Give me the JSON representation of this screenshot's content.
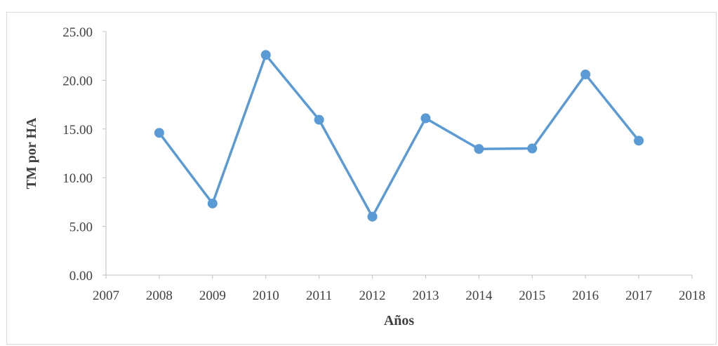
{
  "chart_data": {
    "type": "line",
    "title": "",
    "xlabel": "Años",
    "ylabel": "TM por HA",
    "x": [
      2008,
      2009,
      2010,
      2011,
      2012,
      2013,
      2014,
      2015,
      2016,
      2017
    ],
    "series": [
      {
        "values": [
          14.6,
          7.35,
          22.6,
          15.95,
          6.0,
          16.1,
          12.95,
          13.0,
          20.6,
          13.8
        ]
      }
    ],
    "xlim": [
      2007,
      2018
    ],
    "ylim": [
      0,
      25
    ],
    "x_ticks": [
      "2007",
      "2008",
      "2009",
      "2010",
      "2011",
      "2012",
      "2013",
      "2014",
      "2015",
      "2016",
      "2017",
      "2018"
    ],
    "y_ticks": [
      "0.00",
      "5.00",
      "10.00",
      "15.00",
      "20.00",
      "25.00"
    ],
    "grid": false,
    "legend": "none",
    "colors": {
      "series": "#5b9bd5",
      "axis": "#bfbfbf",
      "text": "#404040"
    }
  }
}
